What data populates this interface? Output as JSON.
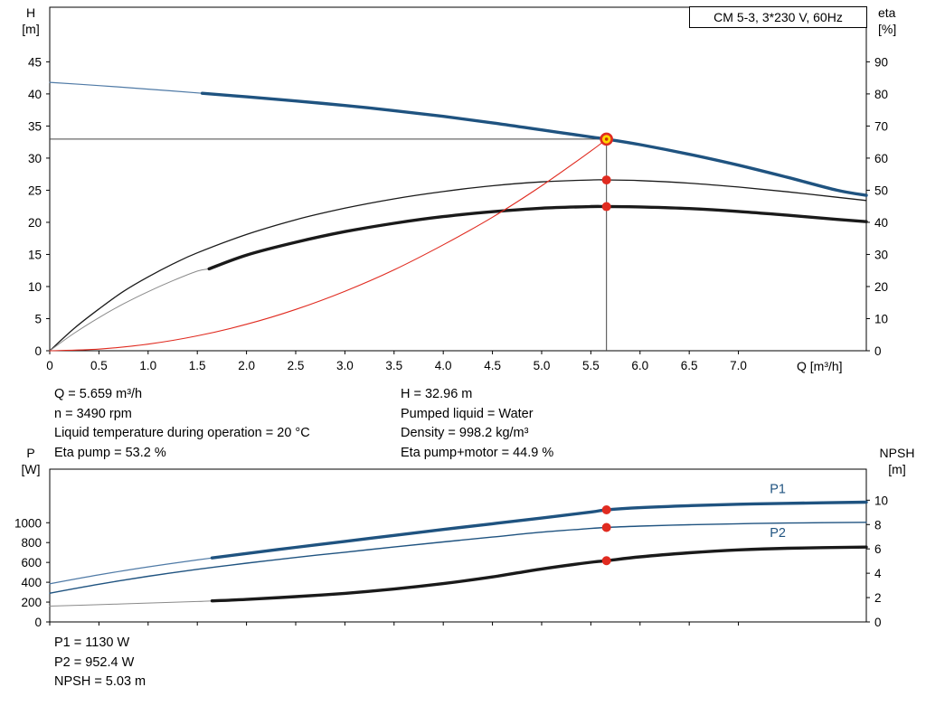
{
  "title_box": {
    "label": "CM 5-3, 3*230 V, 60Hz"
  },
  "colors": {
    "blue": "#1F5380",
    "blue_thin": "#4F7AA6",
    "red": "#E02B20",
    "yellow": "#FFD500",
    "ring_core": "#C83200",
    "black": "#1A1A1A",
    "gray_thin": "#8A8A8A",
    "guide": "#444444"
  },
  "chart_data": [
    {
      "id": "performance",
      "type": "line",
      "title": "CM 5-3, 3*230 V, 60Hz",
      "legend": "none",
      "grid": false,
      "x_axis": {
        "label": "Q [m³/h]",
        "min": 0,
        "max": 8.3,
        "tick_values": [
          0,
          0.5,
          1,
          1.5,
          2,
          2.5,
          3,
          3.5,
          4,
          4.5,
          5,
          5.5,
          6,
          6.5,
          7
        ],
        "tick_labels": [
          "0",
          "0.5",
          "1.0",
          "1.5",
          "2.0",
          "2.5",
          "3.0",
          "3.5",
          "4.0",
          "4.5",
          "5.0",
          "5.5",
          "6.0",
          "6.5",
          "7.0"
        ]
      },
      "y_left": {
        "label_lines": [
          "H",
          "[m]"
        ],
        "min": 0,
        "max": 53.5,
        "tick_values": [
          0,
          5,
          10,
          15,
          20,
          25,
          30,
          35,
          40,
          45
        ],
        "tick_labels": [
          "0",
          "5",
          "10",
          "15",
          "20",
          "25",
          "30",
          "35",
          "40",
          "45"
        ]
      },
      "y_right": {
        "label_lines": [
          "eta",
          "[%]"
        ],
        "min": 0,
        "max": 107,
        "tick_values": [
          0,
          10,
          20,
          30,
          40,
          50,
          60,
          70,
          80,
          90
        ],
        "tick_labels": [
          "0",
          "10",
          "20",
          "30",
          "40",
          "50",
          "60",
          "70",
          "80",
          "90"
        ]
      },
      "series": [
        {
          "name": "head-lead",
          "axis": "left",
          "color_key": "blue_thin",
          "width": 1.2,
          "points": [
            [
              0,
              41.8
            ],
            [
              0.5,
              41.3
            ],
            [
              1,
              40.75
            ],
            [
              1.55,
              40.1
            ]
          ]
        },
        {
          "name": "head",
          "axis": "left",
          "color_key": "blue",
          "width": 3.4,
          "points": [
            [
              1.55,
              40.1
            ],
            [
              2,
              39.55
            ],
            [
              2.5,
              38.9
            ],
            [
              3,
              38.2
            ],
            [
              3.5,
              37.4
            ],
            [
              4,
              36.5
            ],
            [
              4.5,
              35.5
            ],
            [
              5,
              34.4
            ],
            [
              5.5,
              33.3
            ],
            [
              5.659,
              32.96
            ],
            [
              6,
              32.1
            ],
            [
              6.5,
              30.6
            ],
            [
              7,
              28.9
            ],
            [
              7.5,
              27.0
            ],
            [
              8,
              25.0
            ],
            [
              8.3,
              24.2
            ]
          ]
        },
        {
          "name": "eta-pump",
          "axis": "right",
          "color_key": "black",
          "width": 1.3,
          "points": [
            [
              0,
              0
            ],
            [
              0.25,
              7
            ],
            [
              0.5,
              13
            ],
            [
              0.75,
              18.5
            ],
            [
              1,
              23
            ],
            [
              1.25,
              27
            ],
            [
              1.5,
              30.5
            ],
            [
              2,
              36.2
            ],
            [
              2.5,
              40.8
            ],
            [
              3,
              44.4
            ],
            [
              3.5,
              47.3
            ],
            [
              4,
              49.6
            ],
            [
              4.5,
              51.4
            ],
            [
              5,
              52.6
            ],
            [
              5.5,
              53.2
            ],
            [
              5.659,
              53.2
            ],
            [
              6,
              53.0
            ],
            [
              6.5,
              52.2
            ],
            [
              7,
              51.0
            ],
            [
              7.5,
              49.5
            ],
            [
              8,
              47.8
            ],
            [
              8.3,
              46.8
            ]
          ]
        },
        {
          "name": "eta-pump-motor-lead",
          "axis": "right",
          "color_key": "gray_thin",
          "width": 1,
          "points": [
            [
              0,
              0
            ],
            [
              0.25,
              5.5
            ],
            [
              0.5,
              10.3
            ],
            [
              0.75,
              14.6
            ],
            [
              1,
              18.4
            ],
            [
              1.25,
              21.8
            ],
            [
              1.5,
              24.8
            ],
            [
              1.62,
              25.5
            ]
          ]
        },
        {
          "name": "eta-pump-motor",
          "axis": "right",
          "color_key": "black",
          "width": 3.4,
          "points": [
            [
              1.62,
              25.5
            ],
            [
              2,
              29.8
            ],
            [
              2.5,
              33.8
            ],
            [
              3,
              37.1
            ],
            [
              3.5,
              39.7
            ],
            [
              4,
              41.8
            ],
            [
              4.5,
              43.3
            ],
            [
              5,
              44.4
            ],
            [
              5.5,
              44.9
            ],
            [
              5.659,
              44.9
            ],
            [
              6,
              44.8
            ],
            [
              6.5,
              44.3
            ],
            [
              7,
              43.4
            ],
            [
              7.5,
              42.2
            ],
            [
              8,
              40.9
            ],
            [
              8.3,
              40.2
            ]
          ]
        },
        {
          "name": "system-curve",
          "axis": "left",
          "color_key": "red",
          "width": 1.1,
          "points": [
            [
              0,
              0
            ],
            [
              0.5,
              0.26
            ],
            [
              1,
              1.03
            ],
            [
              1.5,
              2.32
            ],
            [
              2,
              4.12
            ],
            [
              2.5,
              6.43
            ],
            [
              3,
              9.26
            ],
            [
              3.5,
              12.6
            ],
            [
              4,
              16.5
            ],
            [
              4.5,
              20.8
            ],
            [
              5,
              25.7
            ],
            [
              5.5,
              31.1
            ],
            [
              5.659,
              32.96
            ]
          ]
        }
      ],
      "guides": {
        "q": 5.659,
        "h": 32.96
      },
      "markers": [
        {
          "name": "duty-point",
          "axis": "left",
          "x": 5.659,
          "y": 32.96,
          "style": "ring"
        },
        {
          "name": "eta-pump-point",
          "axis": "right",
          "x": 5.659,
          "y": 53.2,
          "style": "dot"
        },
        {
          "name": "eta-pump-motor-point",
          "axis": "right",
          "x": 5.659,
          "y": 44.9,
          "style": "dot"
        }
      ]
    },
    {
      "id": "power-npsh",
      "type": "line",
      "title": "",
      "legend": "inline",
      "grid": false,
      "x_axis": {
        "label": "",
        "min": 0,
        "max": 8.3,
        "tick_values": [
          0,
          0.5,
          1,
          1.5,
          2,
          2.5,
          3,
          3.5,
          4,
          4.5,
          5,
          5.5,
          6,
          6.5,
          7
        ],
        "tick_labels": []
      },
      "y_left": {
        "label_lines": [
          "P",
          "[W]"
        ],
        "min": 0,
        "max": 1540,
        "tick_values": [
          0,
          200,
          400,
          600,
          800,
          1000
        ],
        "tick_labels": [
          "0",
          "200",
          "400",
          "600",
          "800",
          "1000"
        ]
      },
      "y_right": {
        "label_lines": [
          "NPSH",
          "[m]"
        ],
        "min": 0,
        "max": 12.55,
        "tick_values": [
          0,
          2,
          4,
          6,
          8,
          10
        ],
        "tick_labels": [
          "0",
          "2",
          "4",
          "6",
          "8",
          "10"
        ]
      },
      "series": [
        {
          "name": "p1-lead",
          "axis": "left",
          "color_key": "blue_thin",
          "width": 1.2,
          "points": [
            [
              0,
              385
            ],
            [
              0.5,
              475
            ],
            [
              1,
              555
            ],
            [
              1.5,
              625
            ],
            [
              1.65,
              645
            ]
          ]
        },
        {
          "name": "p1",
          "axis": "left",
          "color_key": "blue",
          "width": 3.4,
          "points": [
            [
              1.65,
              645
            ],
            [
              2,
              690
            ],
            [
              2.5,
              752
            ],
            [
              3,
              812
            ],
            [
              3.5,
              872
            ],
            [
              4,
              932
            ],
            [
              4.5,
              990
            ],
            [
              5,
              1047
            ],
            [
              5.5,
              1108
            ],
            [
              5.659,
              1130
            ],
            [
              6,
              1152
            ],
            [
              6.5,
              1172
            ],
            [
              7,
              1186
            ],
            [
              7.5,
              1196
            ],
            [
              8.3,
              1207
            ]
          ]
        },
        {
          "name": "p2",
          "axis": "left",
          "color_key": "blue",
          "width": 1.4,
          "points": [
            [
              0,
              290
            ],
            [
              0.5,
              380
            ],
            [
              1,
              460
            ],
            [
              1.5,
              530
            ],
            [
              2,
              592
            ],
            [
              2.5,
              650
            ],
            [
              3,
              703
            ],
            [
              3.5,
              755
            ],
            [
              4,
              806
            ],
            [
              4.5,
              856
            ],
            [
              5,
              905
            ],
            [
              5.5,
              942
            ],
            [
              5.659,
              952.4
            ],
            [
              6,
              966
            ],
            [
              6.5,
              980
            ],
            [
              7,
              990
            ],
            [
              7.5,
              997
            ],
            [
              8.3,
              1004
            ]
          ]
        },
        {
          "name": "npsh-lead",
          "axis": "right",
          "color_key": "gray_thin",
          "width": 1,
          "points": [
            [
              0,
              1.3
            ],
            [
              0.5,
              1.42
            ],
            [
              1,
              1.55
            ],
            [
              1.5,
              1.68
            ],
            [
              1.65,
              1.73
            ]
          ]
        },
        {
          "name": "npsh",
          "axis": "right",
          "color_key": "black",
          "width": 3.4,
          "points": [
            [
              1.65,
              1.73
            ],
            [
              2,
              1.85
            ],
            [
              2.5,
              2.08
            ],
            [
              3,
              2.35
            ],
            [
              3.5,
              2.7
            ],
            [
              4,
              3.15
            ],
            [
              4.5,
              3.7
            ],
            [
              5,
              4.35
            ],
            [
              5.5,
              4.9
            ],
            [
              5.659,
              5.03
            ],
            [
              6,
              5.35
            ],
            [
              6.5,
              5.68
            ],
            [
              7,
              5.92
            ],
            [
              7.5,
              6.05
            ],
            [
              8.3,
              6.15
            ]
          ]
        }
      ],
      "markers": [
        {
          "name": "p1-point",
          "axis": "left",
          "x": 5.659,
          "y": 1130,
          "style": "dot"
        },
        {
          "name": "p2-point",
          "axis": "left",
          "x": 5.659,
          "y": 952.4,
          "style": "dot"
        },
        {
          "name": "npsh-point",
          "axis": "right",
          "x": 5.659,
          "y": 5.03,
          "style": "dot"
        }
      ],
      "curve_labels": [
        {
          "text": "P1",
          "axis": "left",
          "x": 7.4,
          "y": 1300,
          "color_key": "blue"
        },
        {
          "text": "P2",
          "axis": "left",
          "x": 7.4,
          "y": 858,
          "color_key": "blue"
        }
      ]
    }
  ],
  "readouts_top": {
    "left": [
      "Q = 5.659 m³/h",
      "n = 3490 rpm",
      "Liquid temperature during operation = 20 °C",
      "Eta pump = 53.2 %"
    ],
    "right": [
      "H = 32.96 m",
      "Pumped liquid = Water",
      "Density = 998.2 kg/m³",
      "Eta pump+motor = 44.9 %"
    ]
  },
  "readouts_bottom": [
    "P1 = 1130 W",
    "P2 = 952.4 W",
    "NPSH = 5.03 m"
  ]
}
